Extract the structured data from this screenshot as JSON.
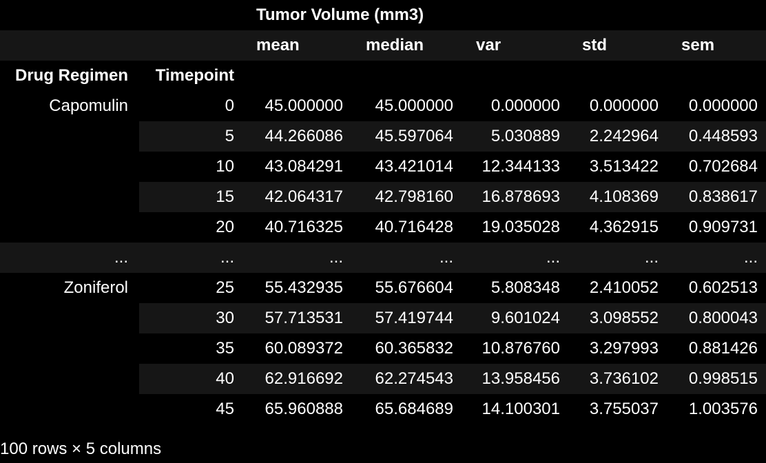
{
  "table": {
    "group_header": "Tumor Volume (mm3)",
    "stat_headers": [
      "mean",
      "median",
      "var",
      "std",
      "sem"
    ],
    "index_headers": [
      "Drug Regimen",
      "Timepoint"
    ],
    "rows": [
      {
        "regimen": "Capomulin",
        "timepoint": "0",
        "values": [
          "45.000000",
          "45.000000",
          "0.000000",
          "0.000000",
          "0.000000"
        ]
      },
      {
        "regimen": "",
        "timepoint": "5",
        "values": [
          "44.266086",
          "45.597064",
          "5.030889",
          "2.242964",
          "0.448593"
        ]
      },
      {
        "regimen": "",
        "timepoint": "10",
        "values": [
          "43.084291",
          "43.421014",
          "12.344133",
          "3.513422",
          "0.702684"
        ]
      },
      {
        "regimen": "",
        "timepoint": "15",
        "values": [
          "42.064317",
          "42.798160",
          "16.878693",
          "4.108369",
          "0.838617"
        ]
      },
      {
        "regimen": "",
        "timepoint": "20",
        "values": [
          "40.716325",
          "40.716428",
          "19.035028",
          "4.362915",
          "0.909731"
        ]
      },
      {
        "regimen": "...",
        "timepoint": "...",
        "values": [
          "...",
          "...",
          "...",
          "...",
          "..."
        ]
      },
      {
        "regimen": "Zoniferol",
        "timepoint": "25",
        "values": [
          "55.432935",
          "55.676604",
          "5.808348",
          "2.410052",
          "0.602513"
        ]
      },
      {
        "regimen": "",
        "timepoint": "30",
        "values": [
          "57.713531",
          "57.419744",
          "9.601024",
          "3.098552",
          "0.800043"
        ]
      },
      {
        "regimen": "",
        "timepoint": "35",
        "values": [
          "60.089372",
          "60.365832",
          "10.876760",
          "3.297993",
          "0.881426"
        ]
      },
      {
        "regimen": "",
        "timepoint": "40",
        "values": [
          "62.916692",
          "62.274543",
          "13.958456",
          "3.736102",
          "0.998515"
        ]
      },
      {
        "regimen": "",
        "timepoint": "45",
        "values": [
          "65.960888",
          "65.684689",
          "14.100301",
          "3.755037",
          "1.003576"
        ]
      }
    ]
  },
  "footer": "100 rows × 5 columns",
  "colors": {
    "background": "#000000",
    "stripe": "#161616",
    "text": "#ffffff"
  }
}
